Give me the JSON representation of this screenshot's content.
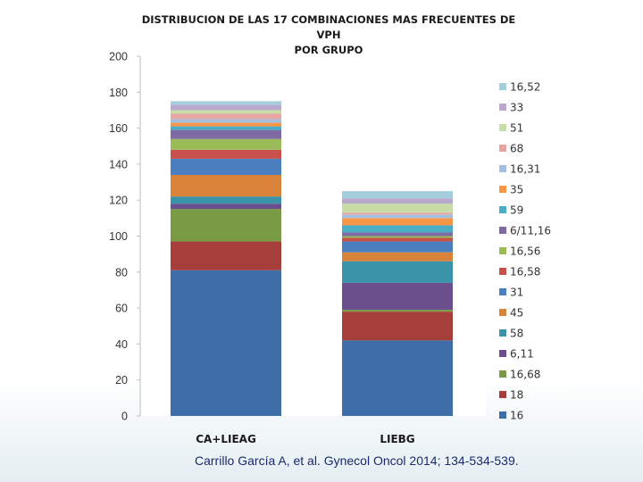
{
  "chart_data": {
    "type": "bar",
    "stacked": true,
    "title": [
      "DISTRIBUCION DE LAS 17 COMBINACIONES MAS FRECUENTES DE VPH",
      "POR GRUPO"
    ],
    "xlabel": "",
    "ylabel": "",
    "categories": [
      "CA+LIEAG",
      "LIEBG"
    ],
    "ylim": [
      0,
      200
    ],
    "yticks": [
      0,
      20,
      40,
      60,
      80,
      100,
      120,
      140,
      160,
      180,
      200
    ],
    "grid": false,
    "legend_position": "right",
    "series": [
      {
        "name": "16",
        "color": "#3e6ea8",
        "values": [
          81,
          42
        ]
      },
      {
        "name": "18",
        "color": "#a63f3c",
        "values": [
          16,
          16
        ]
      },
      {
        "name": "16,68",
        "color": "#7a9a43",
        "values": [
          18,
          1
        ]
      },
      {
        "name": "6,11",
        "color": "#6a4f8c",
        "values": [
          3,
          15
        ]
      },
      {
        "name": "58",
        "color": "#3a93a8",
        "values": [
          4,
          12
        ]
      },
      {
        "name": "45",
        "color": "#d9823a",
        "values": [
          12,
          5
        ]
      },
      {
        "name": "31",
        "color": "#4a7fc0",
        "values": [
          9,
          6
        ]
      },
      {
        "name": "16,58",
        "color": "#c8504a",
        "values": [
          5,
          2
        ]
      },
      {
        "name": "16,56",
        "color": "#9bbb59",
        "values": [
          6,
          1
        ]
      },
      {
        "name": "6/11,16",
        "color": "#7f6aa3",
        "values": [
          5,
          2
        ]
      },
      {
        "name": "59",
        "color": "#4bacc6",
        "values": [
          2,
          4
        ]
      },
      {
        "name": "35",
        "color": "#f79646",
        "values": [
          2,
          4
        ]
      },
      {
        "name": "16,31",
        "color": "#a7bfdf",
        "values": [
          2,
          2
        ]
      },
      {
        "name": "68",
        "color": "#e6a5a3",
        "values": [
          3,
          1
        ]
      },
      {
        "name": "51",
        "color": "#c9dba6",
        "values": [
          2,
          5
        ]
      },
      {
        "name": "33",
        "color": "#b9a9cd",
        "values": [
          3,
          3
        ]
      },
      {
        "name": "16,52",
        "color": "#a5cedd",
        "values": [
          2,
          4
        ]
      }
    ]
  },
  "citation": "Carrillo García A, et al. Gynecol Oncol 2014; 134-534-539."
}
